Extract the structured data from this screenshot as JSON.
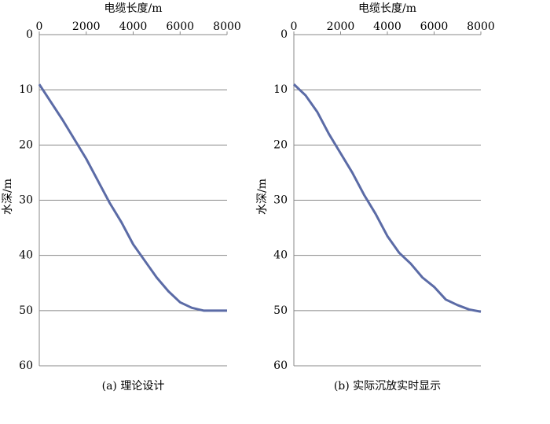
{
  "chart_data": [
    {
      "type": "line",
      "title": "(a) 理论设计",
      "xlabel": "电缆长度/m",
      "ylabel": "水深/m",
      "x": [
        0,
        1000,
        2000,
        2500,
        3000,
        3500,
        4000,
        4500,
        5000,
        5500,
        6000,
        6500,
        7000,
        8000
      ],
      "values": [
        9,
        15.5,
        22.5,
        26.5,
        30.5,
        34,
        38,
        41,
        44,
        46.5,
        48.5,
        49.5,
        50,
        50
      ],
      "color": "#5b6ba6",
      "xlim": [
        0,
        8000
      ],
      "xticks": [
        0,
        2000,
        4000,
        6000,
        8000
      ],
      "ylim": [
        0,
        60
      ],
      "yticks": [
        0,
        10,
        20,
        30,
        40,
        50,
        60
      ],
      "y_reversed": true,
      "grid": true
    },
    {
      "type": "line",
      "title": "(b) 实际沉放实时显示",
      "xlabel": "电缆长度/m",
      "ylabel": "水深/m",
      "x": [
        0,
        500,
        1000,
        1500,
        2000,
        2500,
        3000,
        3500,
        4000,
        4500,
        5000,
        5500,
        6000,
        6500,
        7000,
        7500,
        8000
      ],
      "values": [
        9,
        11,
        14,
        18,
        21.5,
        25,
        29,
        32.5,
        36.5,
        39.5,
        41.5,
        44,
        45.7,
        48,
        49,
        49.8,
        50.2
      ],
      "color": "#5b6ba6",
      "xlim": [
        0,
        8000
      ],
      "xticks": [
        0,
        2000,
        4000,
        6000,
        8000
      ],
      "ylim": [
        0,
        60
      ],
      "yticks": [
        0,
        10,
        20,
        30,
        40,
        50,
        60
      ],
      "y_reversed": true,
      "grid": true
    }
  ]
}
